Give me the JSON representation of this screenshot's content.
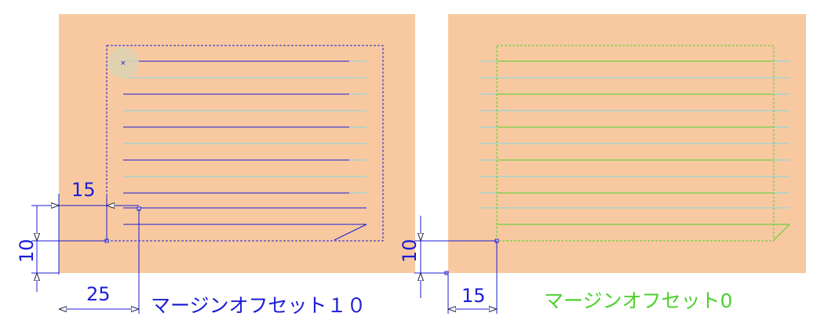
{
  "colors": {
    "sheet": "#f8c9a0",
    "blue": "#1c1cd6",
    "cyan": "#7fd7e6",
    "green": "#4bd12c",
    "marker": "#ddd3b3"
  },
  "left_panel": {
    "caption": "マージンオフセット１０",
    "dim_top": "15",
    "dim_left": "10",
    "dim_bottom": "25"
  },
  "right_panel": {
    "caption": "マージンオフセット0",
    "dim_left": "10",
    "dim_bottom": "15"
  }
}
